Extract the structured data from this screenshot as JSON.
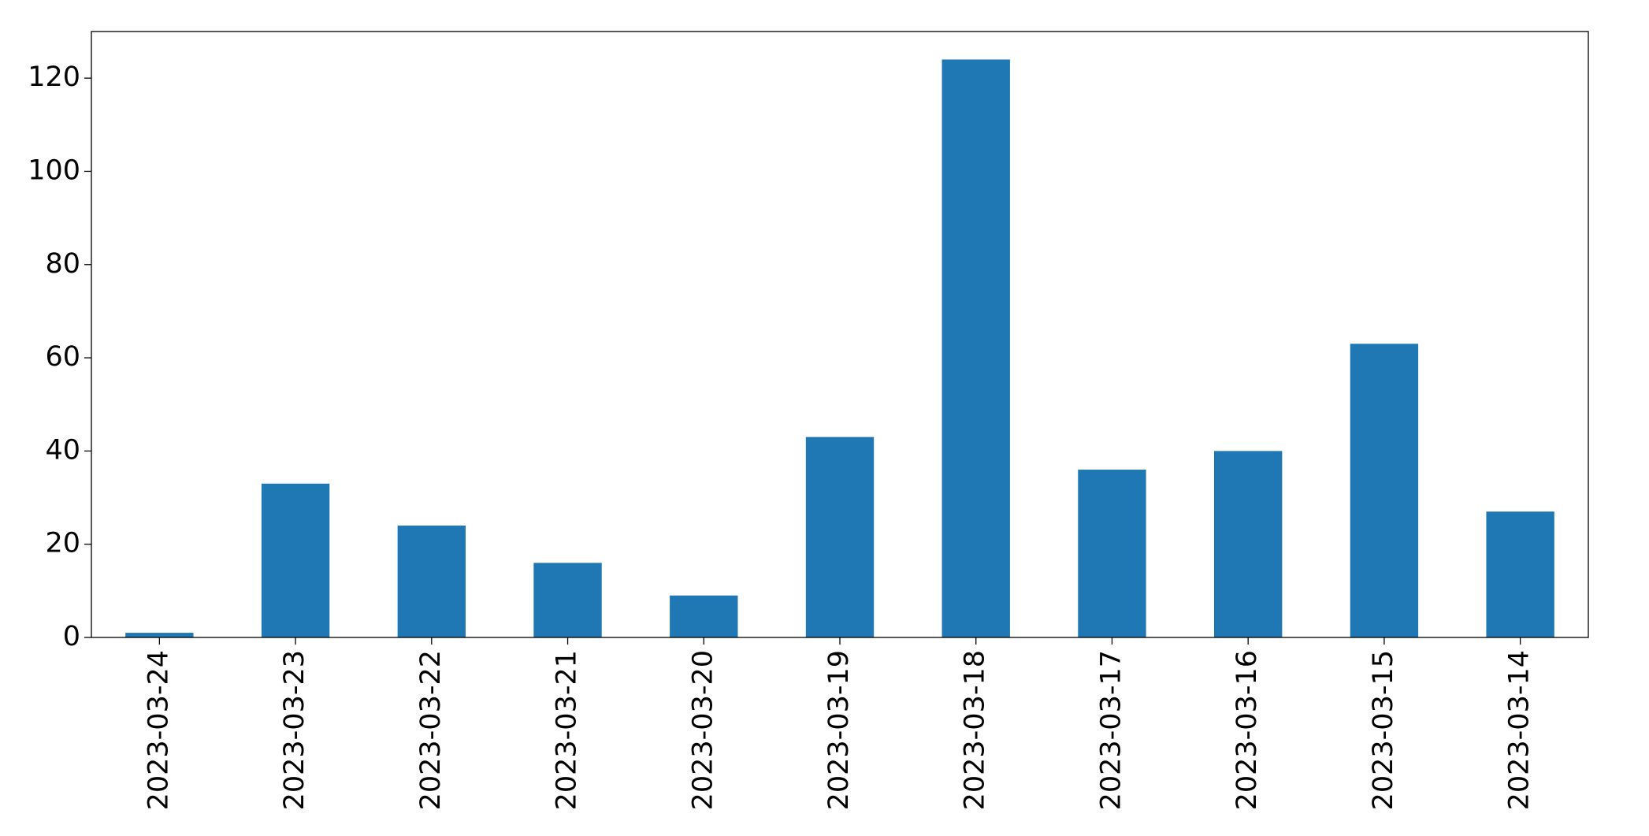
{
  "chart_data": {
    "type": "bar",
    "categories": [
      "2023-03-24",
      "2023-03-23",
      "2023-03-22",
      "2023-03-21",
      "2023-03-20",
      "2023-03-19",
      "2023-03-18",
      "2023-03-17",
      "2023-03-16",
      "2023-03-15",
      "2023-03-14"
    ],
    "values": [
      1,
      33,
      24,
      16,
      9,
      43,
      124,
      36,
      40,
      63,
      27
    ],
    "color": "#1f77b4",
    "ylim": [
      0,
      130
    ],
    "yticks": [
      0,
      20,
      40,
      60,
      80,
      100,
      120
    ],
    "grid": false
  }
}
